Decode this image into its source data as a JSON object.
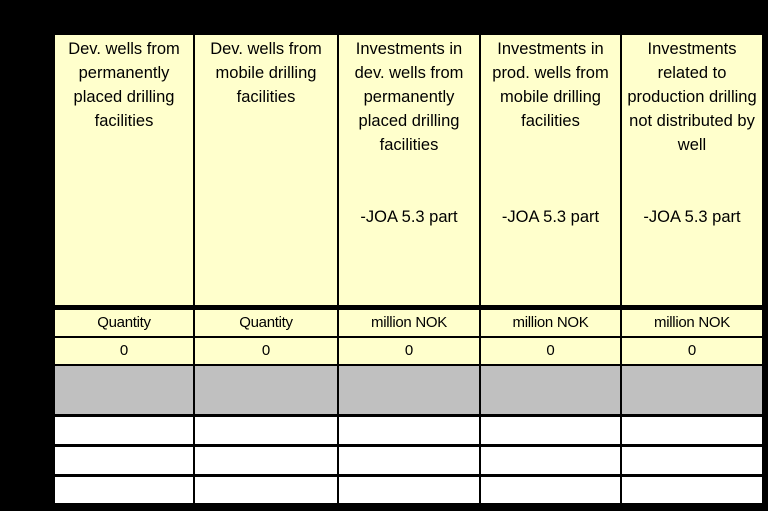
{
  "table": {
    "columns": [
      {
        "title": "Dev. wells from permanently placed drilling facilities",
        "unit": "Quantity",
        "value": "0"
      },
      {
        "title": "Dev. wells from mobile drilling facilities",
        "unit": "Quantity",
        "value": "0"
      },
      {
        "title": "Investments in dev. wells from permanently placed drilling facilities",
        "note": "-JOA 5.3 part",
        "unit": "million NOK",
        "value": "0"
      },
      {
        "title": "Investments in prod. wells from mobile drilling facilities",
        "note": "-JOA 5.3 part",
        "unit": "million NOK",
        "value": "0"
      },
      {
        "title": "Investments related to production drilling not distributed by well",
        "note": "-JOA 5.3 part",
        "unit": "million NOK",
        "value": "0"
      }
    ]
  }
}
